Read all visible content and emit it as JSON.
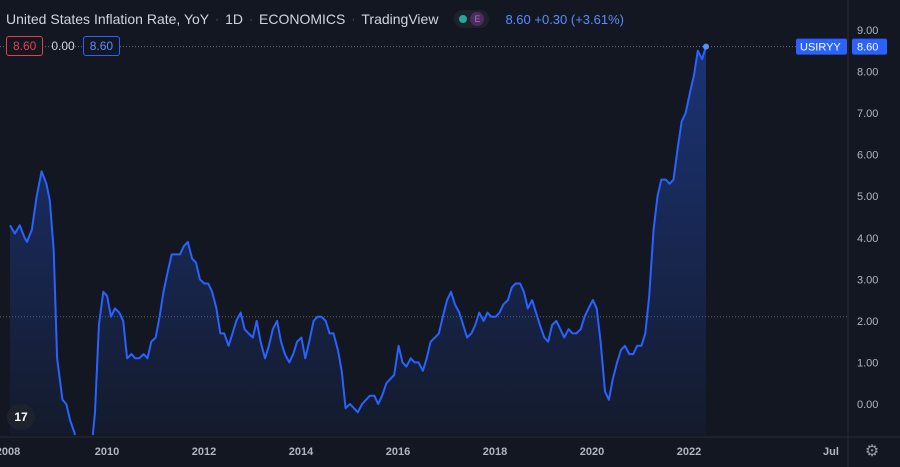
{
  "header": {
    "title": "United States Inflation Rate, YoY",
    "interval": "1D",
    "source": "ECONOMICS",
    "provider": "TradingView",
    "status_dot_color": "#22ab94",
    "event_badge": "E",
    "last_value": "8.60",
    "change": "+0.30 (+3.61%)"
  },
  "values_row": {
    "high": "8.60",
    "low": "0.00",
    "close": "8.60"
  },
  "price_label": {
    "symbol": "USIRYY",
    "value": "8.60"
  },
  "icons": {
    "logo": "tradingview-logo",
    "settings": "gear-icon"
  },
  "colors": {
    "background": "#131722",
    "line": "#2962ff",
    "axis_text": "#b2b5be"
  },
  "chart_data": {
    "type": "area",
    "title": "United States Inflation Rate, YoY",
    "xlabel": "",
    "ylabel": "",
    "x_ticks": [
      "2008",
      "2010",
      "2012",
      "2014",
      "2016",
      "2018",
      "2020",
      "2022",
      "Jul"
    ],
    "y_ticks": [
      "0.00",
      "1.00",
      "2.00",
      "3.00",
      "4.00",
      "5.00",
      "6.00",
      "7.00",
      "8.00",
      "9.00"
    ],
    "ylim": [
      -0.8,
      9.4
    ],
    "xlim": [
      2008.0,
      2023.25
    ],
    "grid": false,
    "reference_line": 2.1,
    "series": [
      {
        "values": [
          [
            2008.0,
            4.3
          ],
          [
            2008.1,
            4.1
          ],
          [
            2008.2,
            4.3
          ],
          [
            2008.3,
            4.0
          ],
          [
            2008.35,
            3.9
          ],
          [
            2008.45,
            4.2
          ],
          [
            2008.55,
            5.0
          ],
          [
            2008.65,
            5.6
          ],
          [
            2008.75,
            5.3
          ],
          [
            2008.82,
            4.9
          ],
          [
            2008.9,
            3.7
          ],
          [
            2008.97,
            1.1
          ],
          [
            2009.08,
            0.1
          ],
          [
            2009.16,
            0.0
          ],
          [
            2009.24,
            -0.4
          ],
          [
            2009.33,
            -0.7
          ],
          [
            2009.4,
            -1.3
          ],
          [
            2009.5,
            -1.5
          ],
          [
            2009.58,
            -1.4
          ],
          [
            2009.66,
            -1.3
          ],
          [
            2009.75,
            -0.2
          ],
          [
            2009.83,
            1.9
          ],
          [
            2009.92,
            2.7
          ],
          [
            2010.0,
            2.6
          ],
          [
            2010.08,
            2.1
          ],
          [
            2010.16,
            2.3
          ],
          [
            2010.25,
            2.2
          ],
          [
            2010.33,
            2.0
          ],
          [
            2010.41,
            1.1
          ],
          [
            2010.5,
            1.2
          ],
          [
            2010.58,
            1.1
          ],
          [
            2010.66,
            1.1
          ],
          [
            2010.75,
            1.2
          ],
          [
            2010.83,
            1.1
          ],
          [
            2010.91,
            1.5
          ],
          [
            2011.0,
            1.6
          ],
          [
            2011.08,
            2.1
          ],
          [
            2011.16,
            2.7
          ],
          [
            2011.25,
            3.2
          ],
          [
            2011.33,
            3.6
          ],
          [
            2011.41,
            3.6
          ],
          [
            2011.5,
            3.6
          ],
          [
            2011.58,
            3.8
          ],
          [
            2011.66,
            3.9
          ],
          [
            2011.75,
            3.5
          ],
          [
            2011.83,
            3.4
          ],
          [
            2011.91,
            3.0
          ],
          [
            2012.0,
            2.9
          ],
          [
            2012.08,
            2.9
          ],
          [
            2012.16,
            2.7
          ],
          [
            2012.25,
            2.3
          ],
          [
            2012.33,
            1.7
          ],
          [
            2012.41,
            1.7
          ],
          [
            2012.5,
            1.4
          ],
          [
            2012.58,
            1.7
          ],
          [
            2012.66,
            2.0
          ],
          [
            2012.75,
            2.2
          ],
          [
            2012.83,
            1.8
          ],
          [
            2012.91,
            1.7
          ],
          [
            2013.0,
            1.6
          ],
          [
            2013.08,
            2.0
          ],
          [
            2013.16,
            1.5
          ],
          [
            2013.25,
            1.1
          ],
          [
            2013.33,
            1.4
          ],
          [
            2013.41,
            1.8
          ],
          [
            2013.5,
            2.0
          ],
          [
            2013.58,
            1.5
          ],
          [
            2013.66,
            1.2
          ],
          [
            2013.75,
            1.0
          ],
          [
            2013.83,
            1.2
          ],
          [
            2013.91,
            1.5
          ],
          [
            2014.0,
            1.6
          ],
          [
            2014.08,
            1.1
          ],
          [
            2014.16,
            1.5
          ],
          [
            2014.25,
            2.0
          ],
          [
            2014.33,
            2.1
          ],
          [
            2014.41,
            2.1
          ],
          [
            2014.5,
            2.0
          ],
          [
            2014.58,
            1.7
          ],
          [
            2014.66,
            1.7
          ],
          [
            2014.75,
            1.3
          ],
          [
            2014.83,
            0.8
          ],
          [
            2014.91,
            -0.1
          ],
          [
            2015.0,
            0.0
          ],
          [
            2015.08,
            -0.1
          ],
          [
            2015.16,
            -0.2
          ],
          [
            2015.25,
            0.0
          ],
          [
            2015.33,
            0.1
          ],
          [
            2015.41,
            0.2
          ],
          [
            2015.5,
            0.2
          ],
          [
            2015.58,
            0.0
          ],
          [
            2015.66,
            0.2
          ],
          [
            2015.75,
            0.5
          ],
          [
            2015.83,
            0.6
          ],
          [
            2015.91,
            0.7
          ],
          [
            2016.0,
            1.4
          ],
          [
            2016.08,
            1.0
          ],
          [
            2016.16,
            0.9
          ],
          [
            2016.25,
            1.1
          ],
          [
            2016.33,
            1.0
          ],
          [
            2016.41,
            1.0
          ],
          [
            2016.5,
            0.8
          ],
          [
            2016.58,
            1.1
          ],
          [
            2016.66,
            1.5
          ],
          [
            2016.75,
            1.6
          ],
          [
            2016.83,
            1.7
          ],
          [
            2016.91,
            2.1
          ],
          [
            2017.0,
            2.5
          ],
          [
            2017.08,
            2.7
          ],
          [
            2017.16,
            2.4
          ],
          [
            2017.25,
            2.2
          ],
          [
            2017.33,
            1.9
          ],
          [
            2017.41,
            1.6
          ],
          [
            2017.5,
            1.7
          ],
          [
            2017.58,
            1.9
          ],
          [
            2017.66,
            2.2
          ],
          [
            2017.75,
            2.0
          ],
          [
            2017.83,
            2.2
          ],
          [
            2017.91,
            2.1
          ],
          [
            2018.0,
            2.1
          ],
          [
            2018.08,
            2.2
          ],
          [
            2018.16,
            2.4
          ],
          [
            2018.25,
            2.5
          ],
          [
            2018.33,
            2.8
          ],
          [
            2018.41,
            2.9
          ],
          [
            2018.5,
            2.9
          ],
          [
            2018.58,
            2.7
          ],
          [
            2018.66,
            2.3
          ],
          [
            2018.75,
            2.5
          ],
          [
            2018.83,
            2.2
          ],
          [
            2018.91,
            1.9
          ],
          [
            2019.0,
            1.6
          ],
          [
            2019.08,
            1.5
          ],
          [
            2019.16,
            1.9
          ],
          [
            2019.25,
            2.0
          ],
          [
            2019.33,
            1.8
          ],
          [
            2019.41,
            1.6
          ],
          [
            2019.5,
            1.8
          ],
          [
            2019.58,
            1.7
          ],
          [
            2019.66,
            1.7
          ],
          [
            2019.75,
            1.8
          ],
          [
            2019.83,
            2.1
          ],
          [
            2019.91,
            2.3
          ],
          [
            2020.0,
            2.5
          ],
          [
            2020.08,
            2.3
          ],
          [
            2020.16,
            1.5
          ],
          [
            2020.25,
            0.3
          ],
          [
            2020.33,
            0.1
          ],
          [
            2020.41,
            0.6
          ],
          [
            2020.5,
            1.0
          ],
          [
            2020.58,
            1.3
          ],
          [
            2020.66,
            1.4
          ],
          [
            2020.75,
            1.2
          ],
          [
            2020.83,
            1.2
          ],
          [
            2020.91,
            1.4
          ],
          [
            2021.0,
            1.4
          ],
          [
            2021.08,
            1.7
          ],
          [
            2021.16,
            2.6
          ],
          [
            2021.25,
            4.2
          ],
          [
            2021.33,
            5.0
          ],
          [
            2021.41,
            5.4
          ],
          [
            2021.5,
            5.4
          ],
          [
            2021.58,
            5.3
          ],
          [
            2021.66,
            5.4
          ],
          [
            2021.75,
            6.2
          ],
          [
            2021.83,
            6.8
          ],
          [
            2021.91,
            7.0
          ],
          [
            2022.0,
            7.5
          ],
          [
            2022.08,
            7.9
          ],
          [
            2022.16,
            8.5
          ],
          [
            2022.25,
            8.3
          ],
          [
            2022.33,
            8.6
          ]
        ]
      }
    ]
  }
}
